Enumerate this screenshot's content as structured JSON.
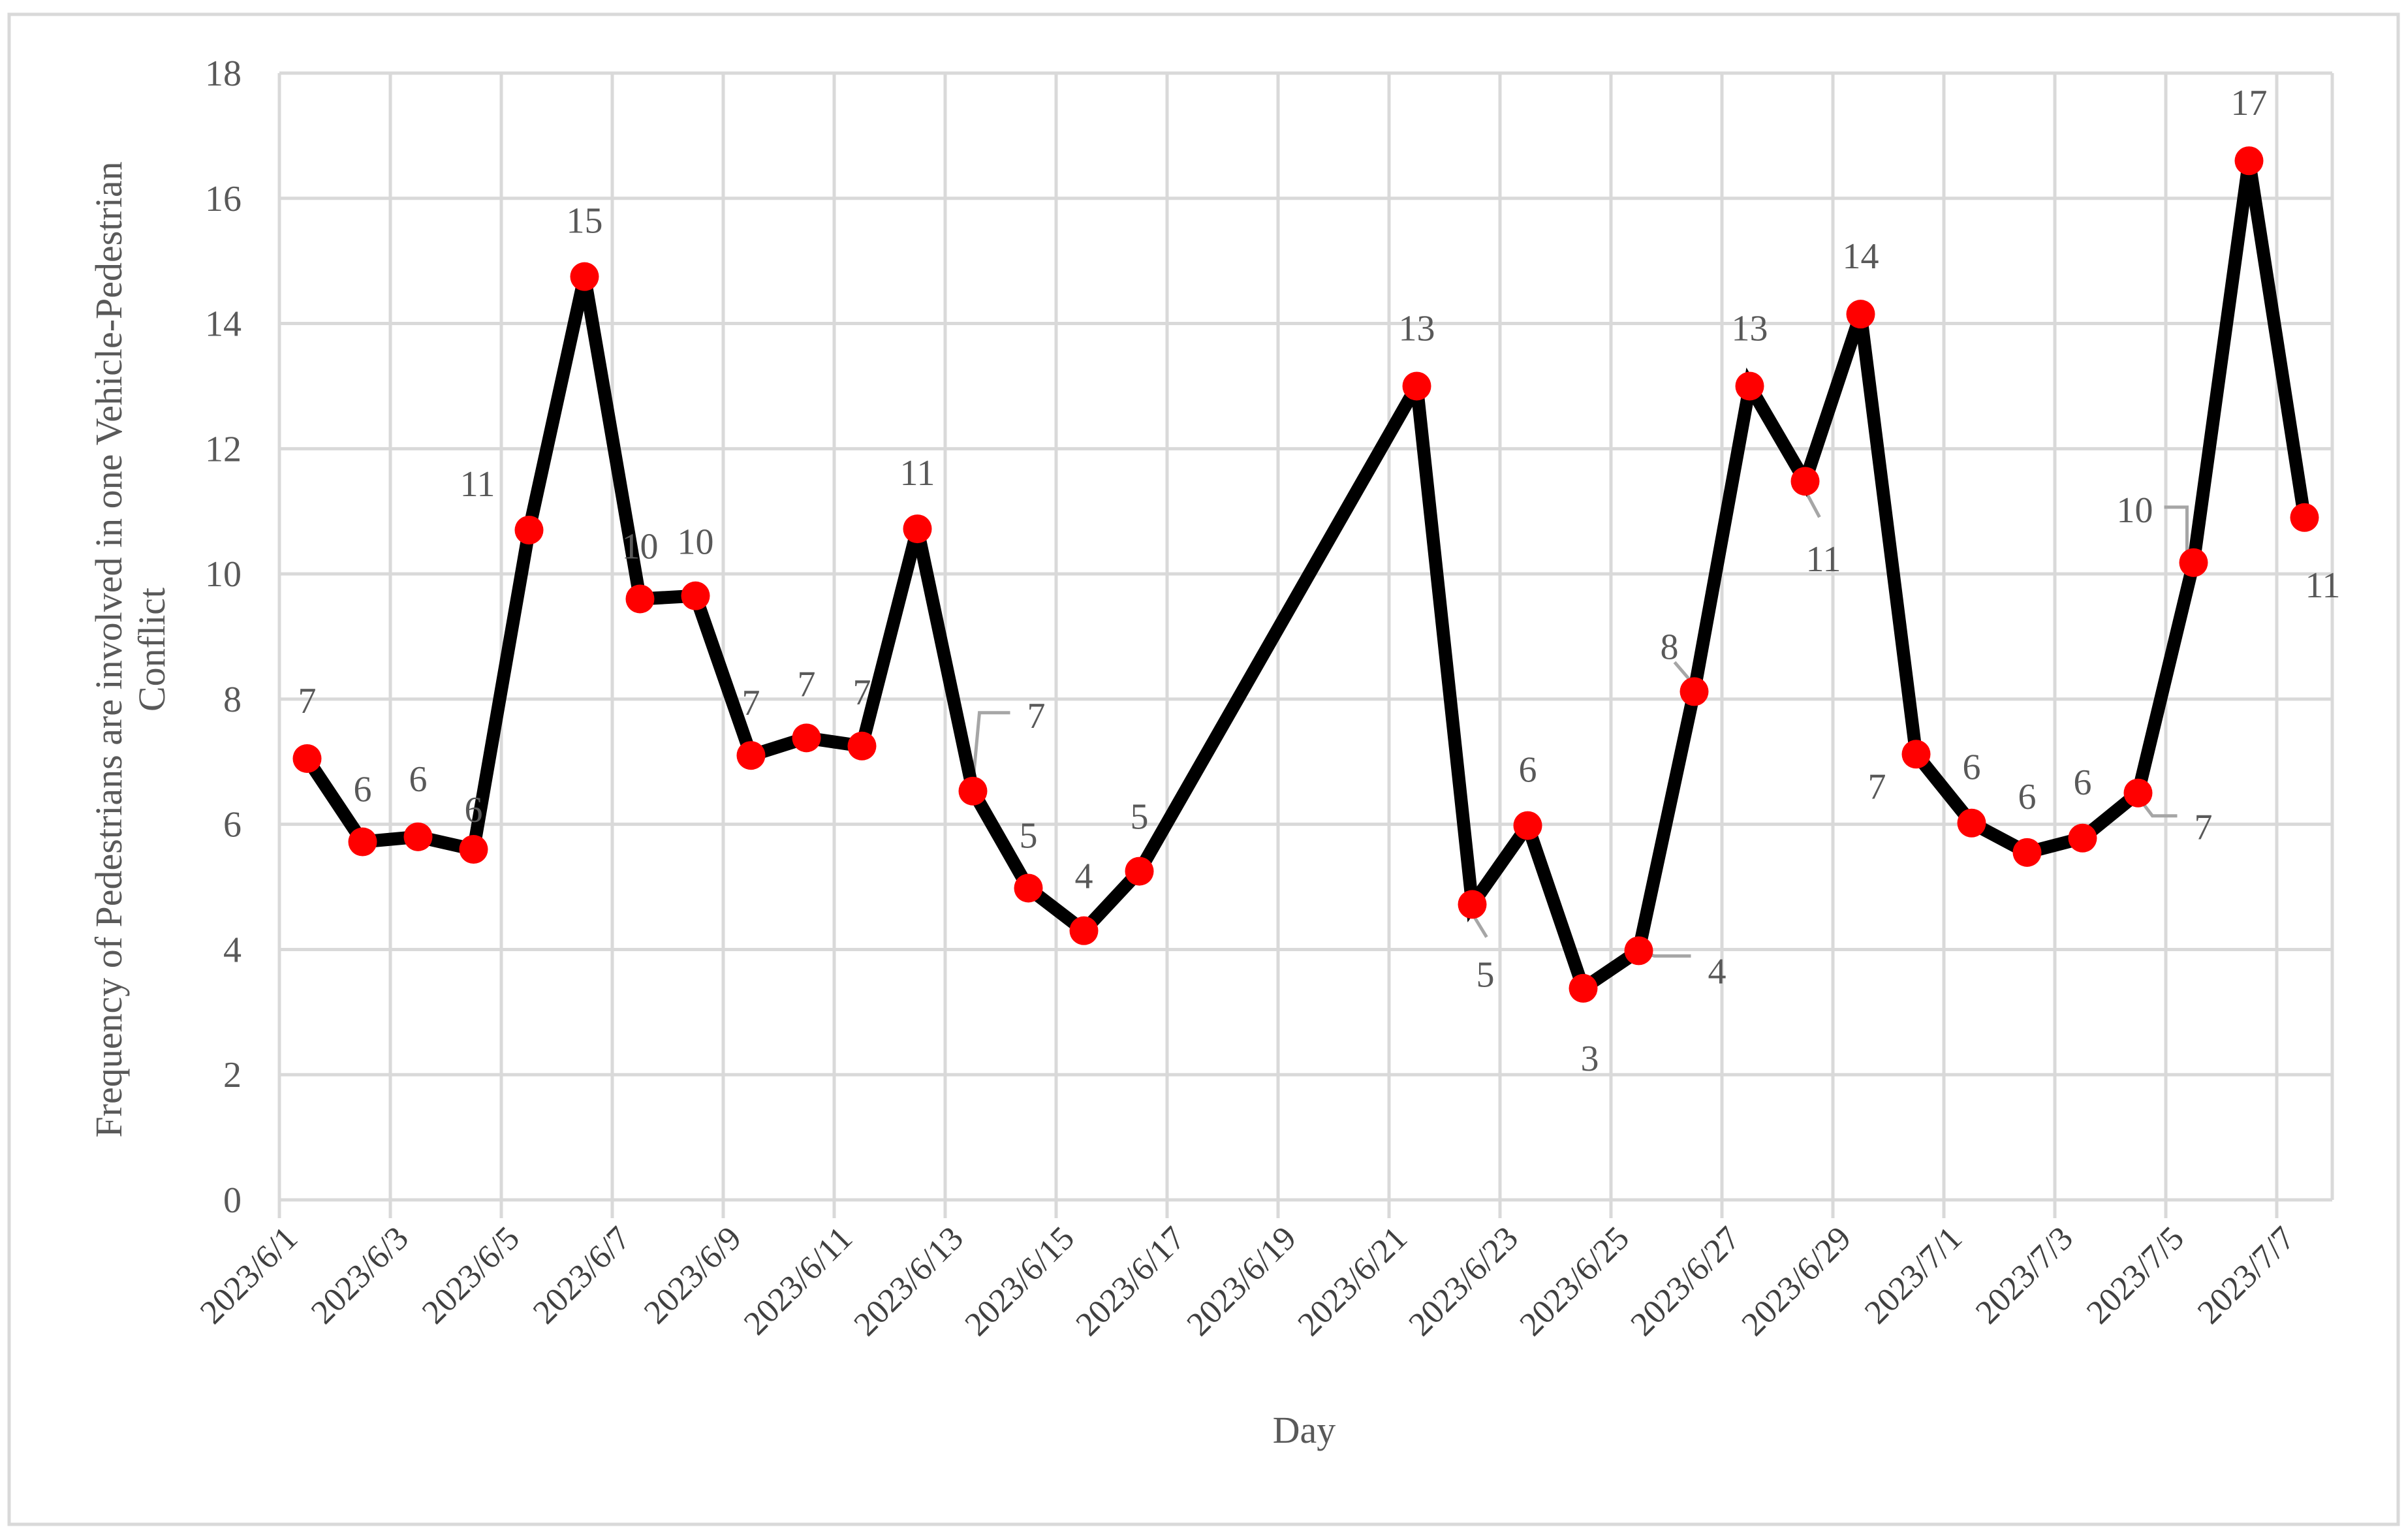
{
  "chart_data": {
    "type": "line",
    "xlabel": "Day",
    "ylabel": "Frequency of Pedestrians are involved in one Vehicle-Pedestrian Conflict",
    "ylim": [
      0,
      18
    ],
    "yticks": [
      0,
      2,
      4,
      6,
      8,
      10,
      12,
      14,
      16,
      18
    ],
    "x_range": [
      "2023/6/1",
      "2023/7/7"
    ],
    "x_tick_labels": [
      "2023/6/1",
      "2023/6/3",
      "2023/6/5",
      "2023/6/7",
      "2023/6/9",
      "2023/6/11",
      "2023/6/13",
      "2023/6/15",
      "2023/6/17",
      "2023/6/19",
      "2023/6/21",
      "2023/6/23",
      "2023/6/25",
      "2023/6/27",
      "2023/6/29",
      "2023/7/1",
      "2023/7/3",
      "2023/7/5",
      "2023/7/7"
    ],
    "grid": true,
    "line_color": "#000000",
    "marker_color": "#ff0000",
    "series": [
      {
        "points": [
          {
            "x": "2023/6/1",
            "y": 7.05,
            "label": "7"
          },
          {
            "x": "2023/6/2",
            "y": 5.72,
            "label": "6"
          },
          {
            "x": "2023/6/3",
            "y": 5.8,
            "label": "6"
          },
          {
            "x": "2023/6/4",
            "y": 5.6,
            "label": "6"
          },
          {
            "x": "2023/6/5",
            "y": 10.7,
            "label": "11"
          },
          {
            "x": "2023/6/6",
            "y": 14.75,
            "label": "15"
          },
          {
            "x": "2023/6/7",
            "y": 9.6,
            "label": "10"
          },
          {
            "x": "2023/6/8",
            "y": 9.65,
            "label": "10"
          },
          {
            "x": "2023/6/9",
            "y": 7.1,
            "label": "7"
          },
          {
            "x": "2023/6/10",
            "y": 7.38,
            "label": "7"
          },
          {
            "x": "2023/6/11",
            "y": 7.25,
            "label": "7"
          },
          {
            "x": "2023/6/12",
            "y": 10.72,
            "label": "11"
          },
          {
            "x": "2023/6/13",
            "y": 6.53,
            "label": "7"
          },
          {
            "x": "2023/6/14",
            "y": 4.98,
            "label": "5"
          },
          {
            "x": "2023/6/15",
            "y": 4.3,
            "label": "4"
          },
          {
            "x": "2023/6/16",
            "y": 5.25,
            "label": "5"
          },
          {
            "x": "2023/6/21",
            "y": 13.0,
            "label": "13"
          },
          {
            "x": "2023/6/22",
            "y": 4.72,
            "label": "5"
          },
          {
            "x": "2023/6/23",
            "y": 5.98,
            "label": "6"
          },
          {
            "x": "2023/6/24",
            "y": 3.38,
            "label": "3"
          },
          {
            "x": "2023/6/25",
            "y": 3.98,
            "label": "4"
          },
          {
            "x": "2023/6/26",
            "y": 8.12,
            "label": "8"
          },
          {
            "x": "2023/6/27",
            "y": 13.0,
            "label": "13"
          },
          {
            "x": "2023/6/28",
            "y": 11.48,
            "label": "11"
          },
          {
            "x": "2023/6/29",
            "y": 14.15,
            "label": "14"
          },
          {
            "x": "2023/6/30",
            "y": 7.12,
            "label": "7"
          },
          {
            "x": "2023/7/1",
            "y": 6.02,
            "label": "6"
          },
          {
            "x": "2023/7/2",
            "y": 5.55,
            "label": "6"
          },
          {
            "x": "2023/7/3",
            "y": 5.78,
            "label": "6"
          },
          {
            "x": "2023/7/4",
            "y": 6.5,
            "label": "7"
          },
          {
            "x": "2023/7/5",
            "y": 10.18,
            "label": "10"
          },
          {
            "x": "2023/7/6",
            "y": 16.6,
            "label": "17"
          },
          {
            "x": "2023/7/7",
            "y": 10.9,
            "label": "11"
          }
        ]
      }
    ]
  }
}
